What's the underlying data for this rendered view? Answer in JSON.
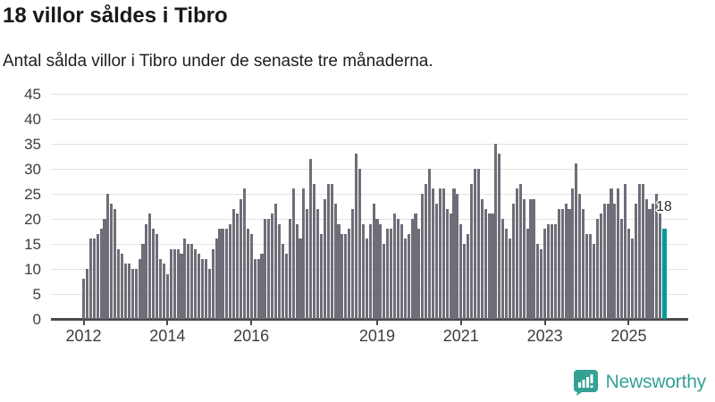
{
  "header": {
    "title": "18 villor såldes i Tibro",
    "subtitle": "Antal sålda villor i Tibro under de senaste tre månaderna."
  },
  "chart_data": {
    "type": "bar",
    "title": "18 villor såldes i Tibro",
    "subtitle": "Antal sålda villor i Tibro under de senaste tre månaderna.",
    "ylabel": "",
    "xlabel": "",
    "ylim": [
      0,
      45
    ],
    "yticks": [
      0,
      5,
      10,
      15,
      20,
      25,
      30,
      35,
      40,
      45
    ],
    "grid": "horizontal",
    "frequency": "monthly",
    "x_start": "2012-01",
    "values": [
      8,
      10,
      16,
      16,
      17,
      18,
      20,
      25,
      23,
      22,
      14,
      13,
      11,
      11,
      10,
      10,
      12,
      15,
      19,
      21,
      18,
      17,
      12,
      11,
      9,
      14,
      14,
      14,
      13,
      16,
      15,
      15,
      14,
      13,
      12,
      12,
      10,
      14,
      16,
      18,
      18,
      18,
      19,
      22,
      21,
      24,
      26,
      18,
      17,
      12,
      12,
      13,
      20,
      20,
      21,
      23,
      19,
      15,
      13,
      20,
      26,
      19,
      16,
      26,
      22,
      32,
      27,
      22,
      17,
      24,
      27,
      27,
      23,
      19,
      17,
      17,
      18,
      22,
      33,
      30,
      19,
      16,
      19,
      23,
      20,
      19,
      15,
      18,
      18,
      21,
      20,
      19,
      16,
      17,
      20,
      21,
      18,
      25,
      27,
      30,
      26,
      23,
      26,
      26,
      22,
      21,
      26,
      25,
      19,
      15,
      17,
      27,
      30,
      30,
      24,
      22,
      21,
      21,
      35,
      33,
      20,
      18,
      16,
      23,
      26,
      27,
      24,
      18,
      24,
      24,
      15,
      14,
      18,
      19,
      19,
      19,
      22,
      22,
      23,
      22,
      26,
      31,
      25,
      22,
      17,
      17,
      15,
      20,
      21,
      23,
      23,
      26,
      23,
      26,
      20,
      27,
      18,
      16,
      23,
      27,
      27,
      24,
      22,
      23,
      25,
      21,
      18
    ],
    "xticks": [
      {
        "label": "2012",
        "month_index": 0
      },
      {
        "label": "2014",
        "month_index": 24
      },
      {
        "label": "2016",
        "month_index": 48
      },
      {
        "label": "2019",
        "month_index": 84
      },
      {
        "label": "2021",
        "month_index": 108
      },
      {
        "label": "2023",
        "month_index": 132
      },
      {
        "label": "2025",
        "month_index": 156
      }
    ],
    "highlight": {
      "index": 166,
      "value": 18,
      "label": "18"
    },
    "legend": "none",
    "colors": {
      "bar": "#6e6e78",
      "highlight": "#00999d",
      "grid": "#e3e3e3",
      "axis": "#4a4a4a",
      "title_text": "#191919",
      "tick_text": "#3d3d3d"
    }
  },
  "annotation": {
    "label": "18"
  },
  "branding": {
    "name": "Newsworthy",
    "color": "#35a195",
    "icon": "newsworthy-speech-bubble-chart-icon"
  }
}
